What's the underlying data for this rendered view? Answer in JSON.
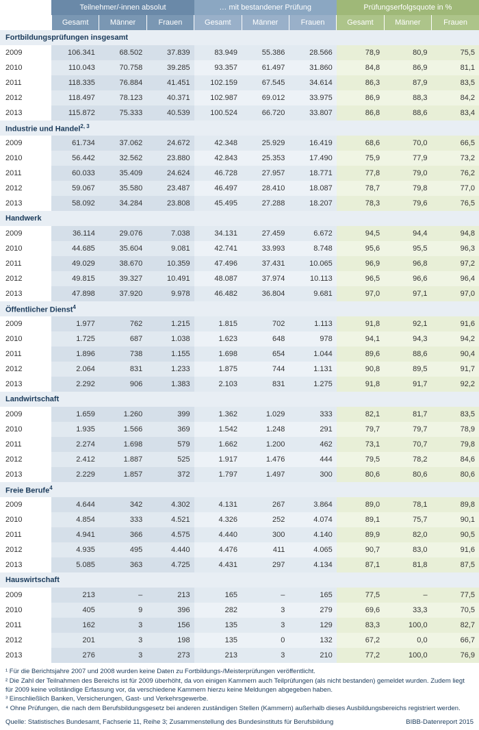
{
  "headers": {
    "group1": "Teilnehmer/-innen absolut",
    "group2": "… mit bestandener Prüfung",
    "group3": "Prüfungserfolgsquote in %",
    "sub": {
      "gesamt": "Gesamt",
      "maenner": "Männer",
      "frauen": "Frauen"
    }
  },
  "sections": [
    {
      "title": "Fortbildungsprüfungen insgesamt",
      "rows": [
        {
          "y": "2009",
          "a": [
            "106.341",
            "68.502",
            "37.839"
          ],
          "p": [
            "83.949",
            "55.386",
            "28.566"
          ],
          "r": [
            "78,9",
            "80,9",
            "75,5"
          ]
        },
        {
          "y": "2010",
          "a": [
            "110.043",
            "70.758",
            "39.285"
          ],
          "p": [
            "93.357",
            "61.497",
            "31.860"
          ],
          "r": [
            "84,8",
            "86,9",
            "81,1"
          ]
        },
        {
          "y": "2011",
          "a": [
            "118.335",
            "76.884",
            "41.451"
          ],
          "p": [
            "102.159",
            "67.545",
            "34.614"
          ],
          "r": [
            "86,3",
            "87,9",
            "83,5"
          ]
        },
        {
          "y": "2012",
          "a": [
            "118.497",
            "78.123",
            "40.371"
          ],
          "p": [
            "102.987",
            "69.012",
            "33.975"
          ],
          "r": [
            "86,9",
            "88,3",
            "84,2"
          ]
        },
        {
          "y": "2013",
          "a": [
            "115.872",
            "75.333",
            "40.539"
          ],
          "p": [
            "100.524",
            "66.720",
            "33.807"
          ],
          "r": [
            "86,8",
            "88,6",
            "83,4"
          ]
        }
      ]
    },
    {
      "title": "Industrie und Handel",
      "sup": "2, 3",
      "rows": [
        {
          "y": "2009",
          "a": [
            "61.734",
            "37.062",
            "24.672"
          ],
          "p": [
            "42.348",
            "25.929",
            "16.419"
          ],
          "r": [
            "68,6",
            "70,0",
            "66,5"
          ]
        },
        {
          "y": "2010",
          "a": [
            "56.442",
            "32.562",
            "23.880"
          ],
          "p": [
            "42.843",
            "25.353",
            "17.490"
          ],
          "r": [
            "75,9",
            "77,9",
            "73,2"
          ]
        },
        {
          "y": "2011",
          "a": [
            "60.033",
            "35.409",
            "24.624"
          ],
          "p": [
            "46.728",
            "27.957",
            "18.771"
          ],
          "r": [
            "77,8",
            "79,0",
            "76,2"
          ]
        },
        {
          "y": "2012",
          "a": [
            "59.067",
            "35.580",
            "23.487"
          ],
          "p": [
            "46.497",
            "28.410",
            "18.087"
          ],
          "r": [
            "78,7",
            "79,8",
            "77,0"
          ]
        },
        {
          "y": "2013",
          "a": [
            "58.092",
            "34.284",
            "23.808"
          ],
          "p": [
            "45.495",
            "27.288",
            "18.207"
          ],
          "r": [
            "78,3",
            "79,6",
            "76,5"
          ]
        }
      ]
    },
    {
      "title": "Handwerk",
      "rows": [
        {
          "y": "2009",
          "a": [
            "36.114",
            "29.076",
            "7.038"
          ],
          "p": [
            "34.131",
            "27.459",
            "6.672"
          ],
          "r": [
            "94,5",
            "94,4",
            "94,8"
          ]
        },
        {
          "y": "2010",
          "a": [
            "44.685",
            "35.604",
            "9.081"
          ],
          "p": [
            "42.741",
            "33.993",
            "8.748"
          ],
          "r": [
            "95,6",
            "95,5",
            "96,3"
          ]
        },
        {
          "y": "2011",
          "a": [
            "49.029",
            "38.670",
            "10.359"
          ],
          "p": [
            "47.496",
            "37.431",
            "10.065"
          ],
          "r": [
            "96,9",
            "96,8",
            "97,2"
          ]
        },
        {
          "y": "2012",
          "a": [
            "49.815",
            "39.327",
            "10.491"
          ],
          "p": [
            "48.087",
            "37.974",
            "10.113"
          ],
          "r": [
            "96,5",
            "96,6",
            "96,4"
          ]
        },
        {
          "y": "2013",
          "a": [
            "47.898",
            "37.920",
            "9.978"
          ],
          "p": [
            "46.482",
            "36.804",
            "9.681"
          ],
          "r": [
            "97,0",
            "97,1",
            "97,0"
          ]
        }
      ]
    },
    {
      "title": "Öffentlicher Dienst",
      "sup": "4",
      "rows": [
        {
          "y": "2009",
          "a": [
            "1.977",
            "762",
            "1.215"
          ],
          "p": [
            "1.815",
            "702",
            "1.113"
          ],
          "r": [
            "91,8",
            "92,1",
            "91,6"
          ]
        },
        {
          "y": "2010",
          "a": [
            "1.725",
            "687",
            "1.038"
          ],
          "p": [
            "1.623",
            "648",
            "978"
          ],
          "r": [
            "94,1",
            "94,3",
            "94,2"
          ]
        },
        {
          "y": "2011",
          "a": [
            "1.896",
            "738",
            "1.155"
          ],
          "p": [
            "1.698",
            "654",
            "1.044"
          ],
          "r": [
            "89,6",
            "88,6",
            "90,4"
          ]
        },
        {
          "y": "2012",
          "a": [
            "2.064",
            "831",
            "1.233"
          ],
          "p": [
            "1.875",
            "744",
            "1.131"
          ],
          "r": [
            "90,8",
            "89,5",
            "91,7"
          ]
        },
        {
          "y": "2013",
          "a": [
            "2.292",
            "906",
            "1.383"
          ],
          "p": [
            "2.103",
            "831",
            "1.275"
          ],
          "r": [
            "91,8",
            "91,7",
            "92,2"
          ]
        }
      ]
    },
    {
      "title": "Landwirtschaft",
      "rows": [
        {
          "y": "2009",
          "a": [
            "1.659",
            "1.260",
            "399"
          ],
          "p": [
            "1.362",
            "1.029",
            "333"
          ],
          "r": [
            "82,1",
            "81,7",
            "83,5"
          ]
        },
        {
          "y": "2010",
          "a": [
            "1.935",
            "1.566",
            "369"
          ],
          "p": [
            "1.542",
            "1.248",
            "291"
          ],
          "r": [
            "79,7",
            "79,7",
            "78,9"
          ]
        },
        {
          "y": "2011",
          "a": [
            "2.274",
            "1.698",
            "579"
          ],
          "p": [
            "1.662",
            "1.200",
            "462"
          ],
          "r": [
            "73,1",
            "70,7",
            "79,8"
          ]
        },
        {
          "y": "2012",
          "a": [
            "2.412",
            "1.887",
            "525"
          ],
          "p": [
            "1.917",
            "1.476",
            "444"
          ],
          "r": [
            "79,5",
            "78,2",
            "84,6"
          ]
        },
        {
          "y": "2013",
          "a": [
            "2.229",
            "1.857",
            "372"
          ],
          "p": [
            "1.797",
            "1.497",
            "300"
          ],
          "r": [
            "80,6",
            "80,6",
            "80,6"
          ]
        }
      ]
    },
    {
      "title": "Freie Berufe",
      "sup": "4",
      "rows": [
        {
          "y": "2009",
          "a": [
            "4.644",
            "342",
            "4.302"
          ],
          "p": [
            "4.131",
            "267",
            "3.864"
          ],
          "r": [
            "89,0",
            "78,1",
            "89,8"
          ]
        },
        {
          "y": "2010",
          "a": [
            "4.854",
            "333",
            "4.521"
          ],
          "p": [
            "4.326",
            "252",
            "4.074"
          ],
          "r": [
            "89,1",
            "75,7",
            "90,1"
          ]
        },
        {
          "y": "2011",
          "a": [
            "4.941",
            "366",
            "4.575"
          ],
          "p": [
            "4.440",
            "300",
            "4.140"
          ],
          "r": [
            "89,9",
            "82,0",
            "90,5"
          ]
        },
        {
          "y": "2012",
          "a": [
            "4.935",
            "495",
            "4.440"
          ],
          "p": [
            "4.476",
            "411",
            "4.065"
          ],
          "r": [
            "90,7",
            "83,0",
            "91,6"
          ]
        },
        {
          "y": "2013",
          "a": [
            "5.085",
            "363",
            "4.725"
          ],
          "p": [
            "4.431",
            "297",
            "4.134"
          ],
          "r": [
            "87,1",
            "81,8",
            "87,5"
          ]
        }
      ]
    },
    {
      "title": "Hauswirtschaft",
      "rows": [
        {
          "y": "2009",
          "a": [
            "213",
            "–",
            "213"
          ],
          "p": [
            "165",
            "–",
            "165"
          ],
          "r": [
            "77,5",
            "–",
            "77,5"
          ]
        },
        {
          "y": "2010",
          "a": [
            "405",
            "9",
            "396"
          ],
          "p": [
            "282",
            "3",
            "279"
          ],
          "r": [
            "69,6",
            "33,3",
            "70,5"
          ]
        },
        {
          "y": "2011",
          "a": [
            "162",
            "3",
            "156"
          ],
          "p": [
            "135",
            "3",
            "129"
          ],
          "r": [
            "83,3",
            "100,0",
            "82,7"
          ]
        },
        {
          "y": "2012",
          "a": [
            "201",
            "3",
            "198"
          ],
          "p": [
            "135",
            "0",
            "132"
          ],
          "r": [
            "67,2",
            "0,0",
            "66,7"
          ]
        },
        {
          "y": "2013",
          "a": [
            "276",
            "3",
            "273"
          ],
          "p": [
            "213",
            "3",
            "210"
          ],
          "r": [
            "77,2",
            "100,0",
            "76,9"
          ]
        }
      ]
    }
  ],
  "footnotes": [
    "¹ Für die Berichtsjahre 2007 und 2008 wurden keine Daten zu Fortbildungs-/Meisterprüfungen veröffentlicht.",
    "² Die Zahl der Teilnahmen des Bereichs ist für 2009 überhöht, da von einigen Kammern auch Teilprüfungen (als nicht bestanden) gemeldet wurden. Zudem liegt für 2009 keine vollständige Erfassung vor, da verschiedene Kammern hierzu keine Meldungen abgegeben haben.",
    "³ Einschließlich Banken, Versicherungen, Gast- und Verkehrsgewerbe.",
    "⁴ Ohne Prüfungen, die nach dem Berufsbildungsgesetz bei anderen zuständigen Stellen (Kammern) außerhalb dieses Ausbildungsbereichs registriert werden."
  ],
  "source": "Quelle: Statistisches Bundesamt, Fachserie 11, Reihe 3; Zusammenstellung des Bundesinstituts für Berufsbildung",
  "credit": "BIBB-Datenreport 2015",
  "colors": {
    "hdr_abs": "#6a89a8",
    "hdr_pass": "#8ba7c2",
    "hdr_rate": "#9fb878",
    "abs_even": "#d5dfe9",
    "abs_odd": "#e1e9f0",
    "pass_even": "#e2eaf1",
    "pass_odd": "#edf2f7",
    "rate_even": "#e8efd7",
    "rate_odd": "#f0f5e4",
    "section_bg": "#e8eef4"
  }
}
